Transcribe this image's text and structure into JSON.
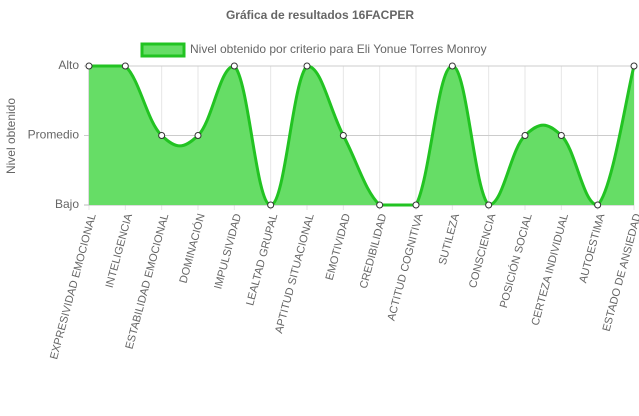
{
  "chart_data": {
    "type": "line",
    "title": "Gráfica de resultados 16FACPER",
    "y_label": "Nivel obtenido",
    "categories": [
      "EXPRESIVIDAD EMOCIONAL",
      "INTELIGENCIA",
      "ESTABILIDAD EMOCIONAL",
      "DOMINACIÓN",
      "IMPULSIVIDAD",
      "LEALTAD GRUPAL",
      "APTITUD SITUACIONAL",
      "EMOTIVIDAD",
      "CREDIBILIDAD",
      "ACTITUD COGNITIVA",
      "SUTILEZA",
      "CONSCIENCIA",
      "POSICIÓN SOCIAL",
      "CERTEZA INDIVIDUAL",
      "AUTOESTIMA",
      "ESTADO DE ANSIEDAD"
    ],
    "series": [
      {
        "name": "Nivel obtenido por criterio para Eli Yonue Torres Monroy",
        "color": "#22c322",
        "fill": "#66dd66",
        "values": [
          2,
          2,
          1,
          1,
          2,
          0,
          2,
          1,
          0,
          0,
          2,
          0,
          1,
          1,
          0,
          2
        ]
      }
    ],
    "ylim": [
      0,
      2
    ],
    "yticks": [
      {
        "value": 0,
        "label": "Bajo"
      },
      {
        "value": 1,
        "label": "Promedio"
      },
      {
        "value": 2,
        "label": "Alto"
      }
    ],
    "grid": true,
    "legend": "top"
  }
}
